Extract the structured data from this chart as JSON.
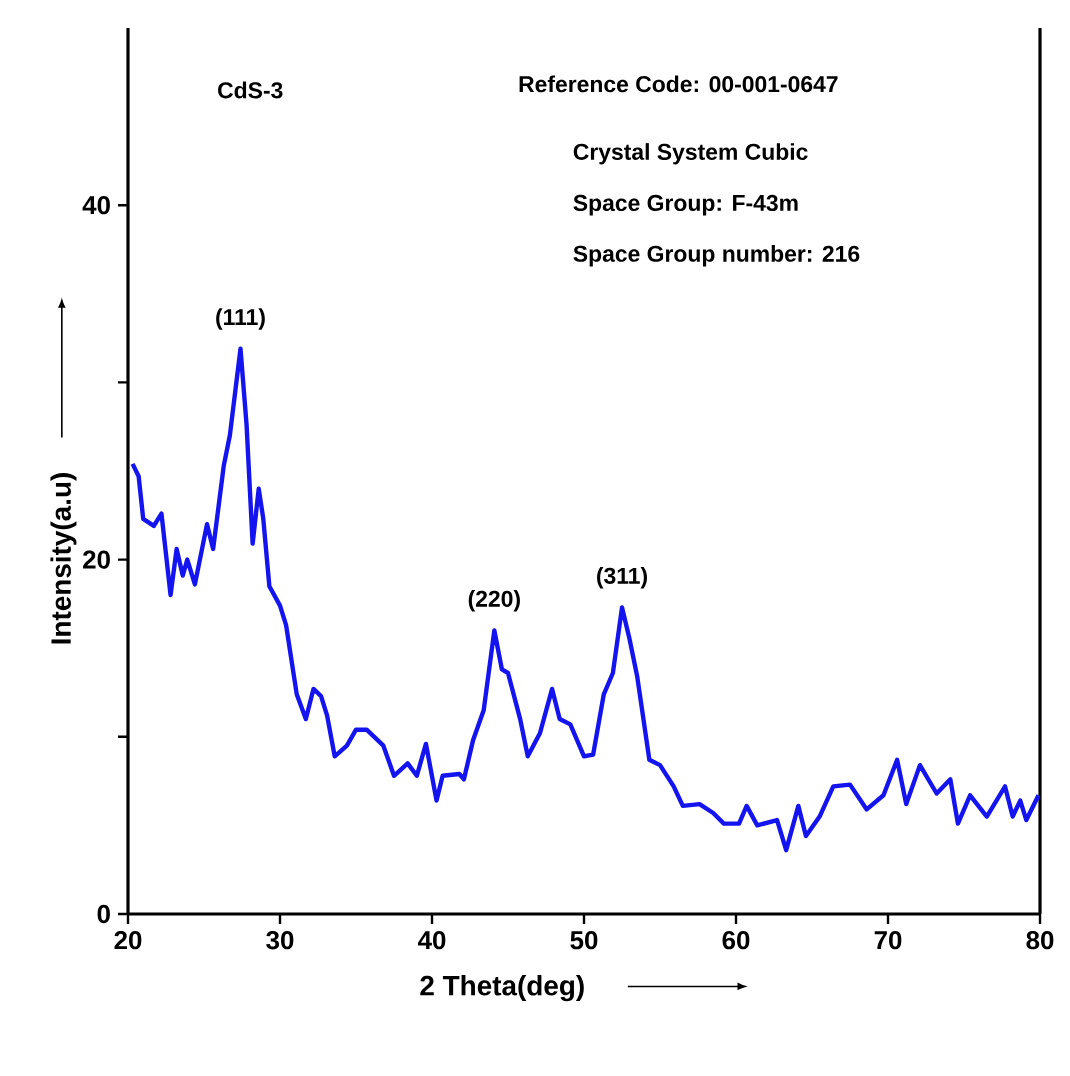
{
  "chart_data": {
    "type": "line",
    "xlabel": "2 Theta(deg)",
    "ylabel": "Intensity(a.u)",
    "xlim": [
      20,
      80
    ],
    "ylim": [
      0,
      50
    ],
    "xticks": [
      20,
      30,
      40,
      50,
      60,
      70,
      80
    ],
    "yticks": [
      0,
      {
        "value": 10,
        "label": null
      },
      20,
      {
        "value": 30,
        "label": null
      },
      40
    ],
    "grid": false,
    "marker": "none",
    "line_style": "solid",
    "annotations": [
      "CdS-3",
      "Reference Code:  00-001-0647",
      "Crystal System  Cubic",
      "Space Group:  F-43m",
      "Space Group number: 216",
      {
        "text": "(111)",
        "x": 27.4,
        "y": 31.9
      },
      {
        "text": "(220)",
        "x": 44.1,
        "y": 16.0
      },
      {
        "text": "(311)",
        "x": 52.5,
        "y": 17.3
      }
    ],
    "series": [
      {
        "color": "#1414f0",
        "x": [
          20.3,
          20.7,
          21.0,
          21.7,
          22.2,
          22.8,
          23.2,
          23.6,
          23.9,
          24.4,
          25.2,
          25.6,
          26.3,
          26.7,
          27.4,
          27.8,
          28.2,
          28.6,
          28.9,
          29.3,
          30.0,
          30.4,
          31.1,
          31.7,
          32.2,
          32.7,
          33.1,
          33.6,
          34.4,
          35.0,
          35.7,
          36.8,
          37.5,
          38.4,
          39.0,
          39.6,
          40.3,
          40.7,
          41.8,
          42.1,
          42.7,
          43.4,
          44.1,
          44.6,
          45.0,
          45.8,
          46.3,
          47.1,
          47.9,
          48.4,
          49.1,
          50.0,
          50.6,
          51.3,
          51.9,
          52.5,
          53.0,
          53.5,
          54.3,
          55.0,
          55.9,
          56.5,
          57.6,
          58.5,
          59.2,
          60.2,
          60.7,
          61.4,
          62.7,
          63.3,
          64.1,
          64.6,
          65.5,
          66.4,
          67.5,
          68.6,
          69.7,
          70.6,
          71.2,
          72.1,
          73.2,
          74.1,
          74.6,
          75.4,
          76.5,
          77.7,
          78.2,
          78.7,
          79.1,
          79.9
        ],
        "values": [
          25.4,
          24.7,
          22.3,
          21.9,
          22.6,
          18.0,
          20.6,
          19.1,
          20.0,
          18.6,
          22.0,
          20.6,
          25.3,
          27.0,
          31.9,
          27.6,
          20.9,
          24.0,
          22.3,
          18.5,
          17.4,
          16.3,
          12.4,
          11.0,
          12.7,
          12.3,
          11.2,
          8.9,
          9.5,
          10.4,
          10.4,
          9.5,
          7.8,
          8.5,
          7.8,
          9.6,
          6.4,
          7.8,
          7.9,
          7.6,
          9.8,
          11.5,
          16.0,
          13.8,
          13.6,
          11.0,
          8.9,
          10.2,
          12.7,
          11.0,
          10.7,
          8.9,
          9.0,
          12.4,
          13.6,
          17.3,
          15.5,
          13.4,
          8.7,
          8.4,
          7.2,
          6.1,
          6.2,
          5.7,
          5.1,
          5.1,
          6.1,
          5.0,
          5.3,
          3.6,
          6.1,
          4.4,
          5.5,
          7.2,
          7.3,
          5.9,
          6.7,
          8.7,
          6.2,
          8.4,
          6.8,
          7.6,
          5.1,
          6.7,
          5.5,
          7.2,
          5.5,
          6.4,
          5.3,
          6.7
        ]
      }
    ]
  }
}
